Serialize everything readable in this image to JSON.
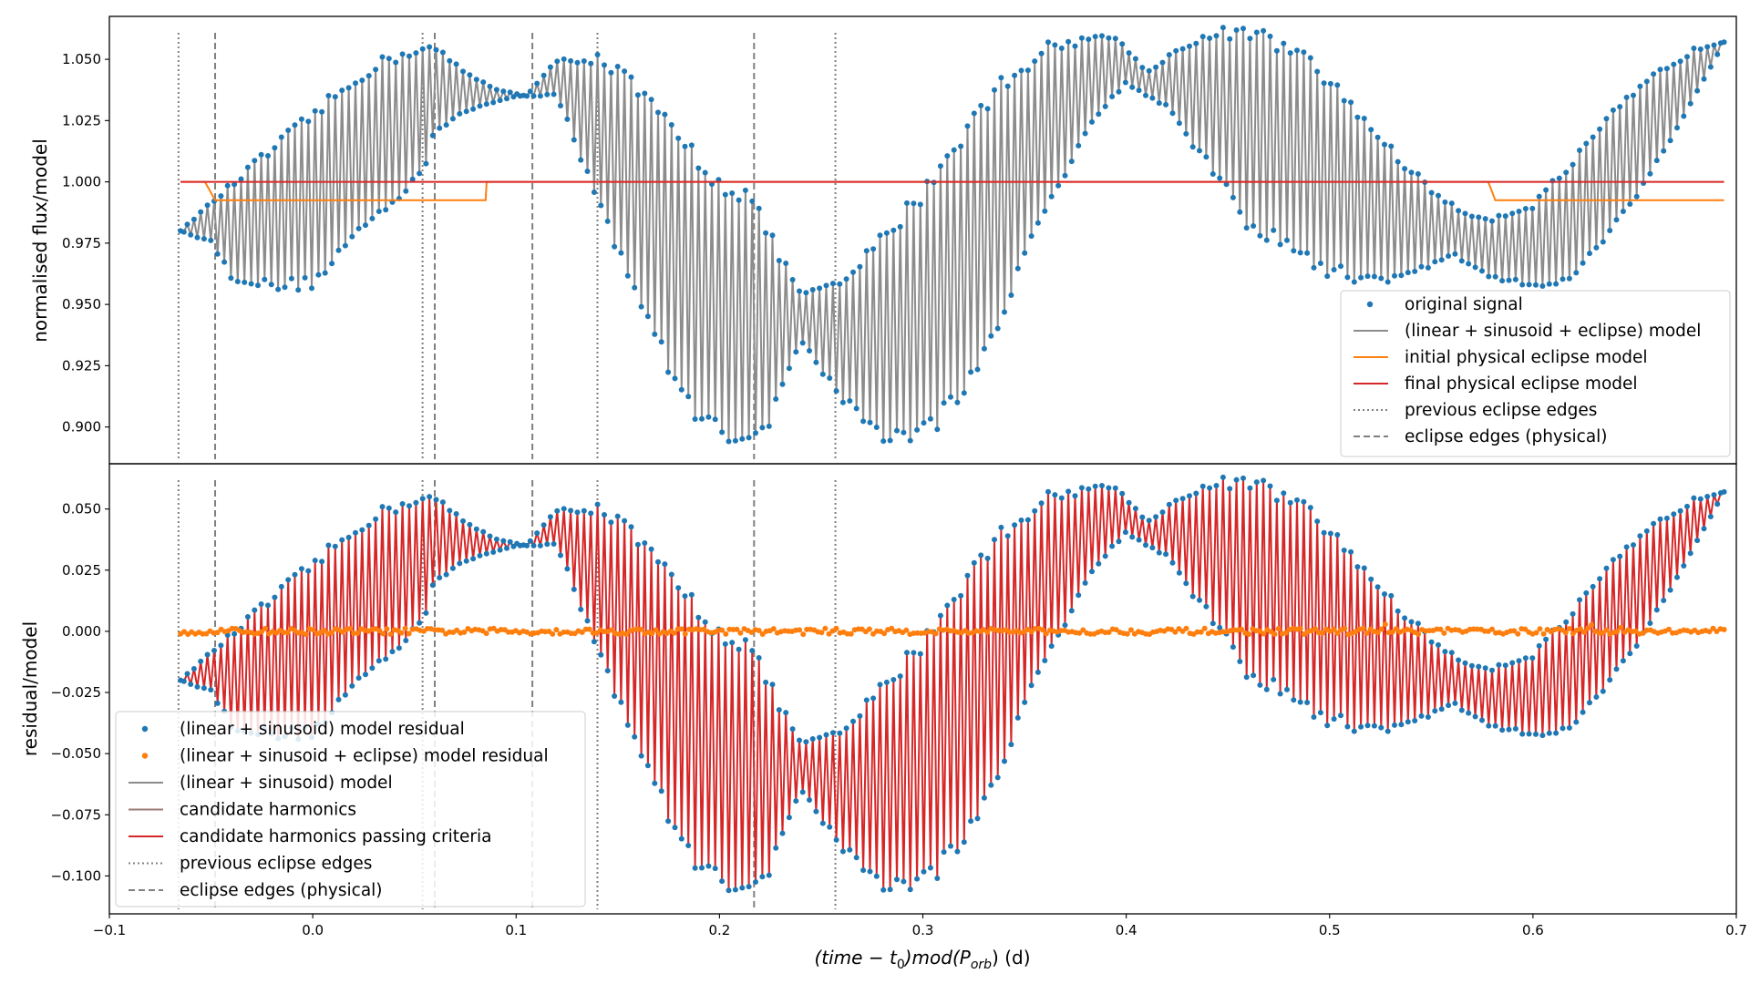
{
  "chart_data": [
    {
      "type": "line",
      "panel": "top",
      "ylabel": "normalised flux/model",
      "xlim": [
        -0.1,
        0.7
      ],
      "ylim": [
        0.885,
        1.0675
      ],
      "yticks": [
        0.9,
        0.925,
        0.95,
        0.975,
        1.0,
        1.025,
        1.05
      ],
      "ytick_labels": [
        "0.900",
        "0.925",
        "0.950",
        "0.975",
        "1.000",
        "1.025",
        "1.050"
      ],
      "legend_position": "lower-right",
      "legend": [
        {
          "label": "original signal",
          "style": "dot",
          "color": "#1f77b4"
        },
        {
          "label": "(linear + sinusoid + eclipse) model",
          "style": "line",
          "color": "#8c8c8c"
        },
        {
          "label": "initial physical eclipse model",
          "style": "line",
          "color": "#ff7f0e"
        },
        {
          "label": "final physical eclipse model",
          "style": "line",
          "color": "#d62728"
        },
        {
          "label": "previous eclipse edges",
          "style": "dotted",
          "color": "#808080"
        },
        {
          "label": "eclipse edges (physical)",
          "style": "dashed",
          "color": "#808080"
        }
      ],
      "series": [
        {
          "name": "original signal",
          "kind": "scatter",
          "color": "#1f77b4",
          "baseline": 1.0,
          "envelope": "flux"
        },
        {
          "name": "(linear + sinusoid + eclipse) model",
          "kind": "zigzag",
          "color": "#8c8c8c",
          "baseline": 1.0,
          "envelope": "flux"
        },
        {
          "name": "initial physical eclipse model",
          "kind": "line",
          "color": "#ff7f0e",
          "x": [
            -0.065,
            -0.053,
            -0.048,
            0.085,
            0.0855,
            0.577,
            0.578,
            0.5815,
            0.694
          ],
          "y": [
            1.0,
            1.0,
            0.9925,
            0.9925,
            1.0,
            1.0,
            1.0,
            0.9925,
            0.9925
          ]
        },
        {
          "name": "final physical eclipse model",
          "kind": "line",
          "color": "#d62728",
          "x": [
            -0.065,
            0.694
          ],
          "y": [
            1.0,
            1.0
          ]
        }
      ]
    },
    {
      "type": "line",
      "panel": "bottom",
      "ylabel": "residual/model",
      "xlabel": "(time − t0)mod(Porb) (d)",
      "xlim": [
        -0.1,
        0.7
      ],
      "ylim": [
        -0.1155,
        0.0685
      ],
      "yticks": [
        -0.1,
        -0.075,
        -0.05,
        -0.025,
        0.0,
        0.025,
        0.05
      ],
      "ytick_labels": [
        "−0.100",
        "−0.075",
        "−0.050",
        "−0.025",
        "0.000",
        "0.025",
        "0.050"
      ],
      "xticks": [
        -0.1,
        0.0,
        0.1,
        0.2,
        0.3,
        0.4,
        0.5,
        0.6,
        0.7
      ],
      "xtick_labels": [
        "−0.1",
        "0.0",
        "0.1",
        "0.2",
        "0.3",
        "0.4",
        "0.5",
        "0.6",
        "0.7"
      ],
      "legend_position": "lower-left",
      "legend": [
        {
          "label": "(linear + sinusoid) model residual",
          "style": "dot",
          "color": "#1f77b4"
        },
        {
          "label": "(linear + sinusoid + eclipse) model residual",
          "style": "dot",
          "color": "#ff7f0e"
        },
        {
          "label": "(linear + sinusoid) model",
          "style": "line",
          "color": "#8c8c8c"
        },
        {
          "label": "candidate harmonics",
          "style": "line",
          "color": "#9c7b75"
        },
        {
          "label": "candidate harmonics passing criteria",
          "style": "line",
          "color": "#d62728"
        },
        {
          "label": "previous eclipse edges",
          "style": "dotted",
          "color": "#808080"
        },
        {
          "label": "eclipse edges (physical)",
          "style": "dashed",
          "color": "#808080"
        }
      ],
      "series": [
        {
          "name": "(linear + sinusoid) model residual",
          "kind": "scatter",
          "color": "#1f77b4",
          "baseline": 0.0,
          "envelope": "flux"
        },
        {
          "name": "candidate harmonics passing criteria",
          "kind": "zigzag",
          "color": "#d62728",
          "baseline": 0.0,
          "envelope": "flux"
        },
        {
          "name": "(linear + sinusoid + eclipse) model residual",
          "kind": "scatter",
          "color": "#ff7f0e",
          "baseline": 0.0,
          "noise": 0.0012
        }
      ]
    }
  ],
  "envelope": {
    "upper": {
      "x": [
        -0.065,
        -0.03,
        0.0,
        0.03,
        0.05,
        0.06,
        0.075,
        0.09,
        0.105,
        0.12,
        0.14,
        0.155,
        0.18,
        0.2,
        0.215,
        0.225,
        0.24,
        0.26,
        0.28,
        0.3,
        0.32,
        0.34,
        0.36,
        0.38,
        0.395,
        0.41,
        0.43,
        0.45,
        0.47,
        0.49,
        0.51,
        0.53,
        0.55,
        0.565,
        0.58,
        0.6,
        0.62,
        0.64,
        0.66,
        0.68,
        0.694
      ],
      "y": [
        -0.02,
        0.008,
        0.03,
        0.05,
        0.056,
        0.056,
        0.045,
        0.038,
        0.035,
        0.05,
        0.053,
        0.045,
        0.022,
        0.004,
        -0.002,
        -0.02,
        -0.045,
        -0.04,
        -0.02,
        0.0,
        0.025,
        0.045,
        0.057,
        0.06,
        0.06,
        0.045,
        0.058,
        0.064,
        0.062,
        0.052,
        0.035,
        0.015,
        -0.002,
        -0.012,
        -0.014,
        -0.008,
        0.01,
        0.03,
        0.045,
        0.055,
        0.057
      ]
    },
    "lower": {
      "x": [
        -0.065,
        -0.05,
        -0.04,
        -0.02,
        0.0,
        0.02,
        0.04,
        0.055,
        0.06,
        0.08,
        0.1,
        0.12,
        0.14,
        0.16,
        0.18,
        0.2,
        0.215,
        0.225,
        0.24,
        0.26,
        0.28,
        0.3,
        0.32,
        0.34,
        0.36,
        0.38,
        0.4,
        0.42,
        0.44,
        0.46,
        0.48,
        0.5,
        0.52,
        0.54,
        0.56,
        0.58,
        0.6,
        0.62,
        0.64,
        0.66,
        0.68,
        0.694
      ],
      "y": [
        -0.02,
        -0.025,
        -0.04,
        -0.045,
        -0.044,
        -0.025,
        -0.01,
        0.005,
        0.02,
        0.03,
        0.035,
        0.035,
        -0.01,
        -0.05,
        -0.09,
        -0.107,
        -0.107,
        -0.1,
        -0.065,
        -0.09,
        -0.107,
        -0.107,
        -0.09,
        -0.055,
        -0.015,
        0.02,
        0.04,
        0.03,
        0.005,
        -0.02,
        -0.03,
        -0.04,
        -0.042,
        -0.04,
        -0.03,
        -0.04,
        -0.044,
        -0.04,
        -0.02,
        0.005,
        0.035,
        0.057
      ]
    }
  },
  "vertical_lines": {
    "previous_eclipse_edges": [
      -0.066,
      0.054,
      0.14,
      0.257
    ],
    "eclipse_edges_physical": [
      -0.048,
      0.06,
      0.108,
      0.217
    ]
  }
}
